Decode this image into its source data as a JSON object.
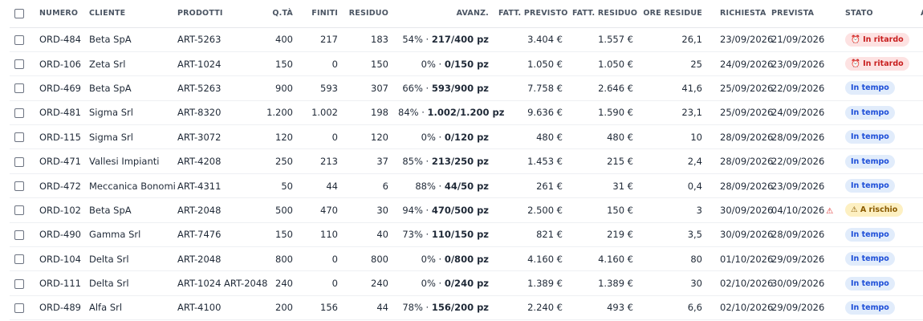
{
  "columns": {
    "numero": "NUMERO",
    "cliente": "CLIENTE",
    "prodotti": "PRODOTTI",
    "qta": "Q.TÀ",
    "finiti": "FINITI",
    "residuo": "RESIDUO",
    "avanz": "AVANZ.",
    "fatt_previsto": "FATT. PREVISTO",
    "fatt_residuo": "FATT. RESIDUO",
    "ore_residue": "ORE RESIDUE",
    "richiesta": "RICHIESTA",
    "prevista": "PREVISTA",
    "stato": "STATO",
    "azioni": "AZI"
  },
  "status_colors": {
    "in_ritardo": "#c81e1e",
    "in_tempo": "#1d4ed8",
    "a_rischio": "#8a5a00"
  },
  "rows": [
    {
      "numero": "ORD-484",
      "cliente": "Beta SpA",
      "prodotti": "ART-5263",
      "qta": "400",
      "finiti": "217",
      "residuo": "183",
      "avanz_pct": "54% · ",
      "avanz_pz": "217/400 pz",
      "fatt_previsto": "3.404 €",
      "fatt_residuo": "1.557 €",
      "ore_residue": "26,1",
      "richiesta": "23/09/2026",
      "prevista": "21/09/2026",
      "prevista_warn": "",
      "stato": "⏰ In ritardo",
      "stato_type": "late"
    },
    {
      "numero": "ORD-106",
      "cliente": "Zeta Srl",
      "prodotti": "ART-1024",
      "qta": "150",
      "finiti": "0",
      "residuo": "150",
      "avanz_pct": "0% · ",
      "avanz_pz": "0/150 pz",
      "fatt_previsto": "1.050 €",
      "fatt_residuo": "1.050 €",
      "ore_residue": "25",
      "richiesta": "24/09/2026",
      "prevista": "23/09/2026",
      "prevista_warn": "",
      "stato": "⏰ In ritardo",
      "stato_type": "late"
    },
    {
      "numero": "ORD-469",
      "cliente": "Beta SpA",
      "prodotti": "ART-5263",
      "qta": "900",
      "finiti": "593",
      "residuo": "307",
      "avanz_pct": "66% · ",
      "avanz_pz": "593/900 pz",
      "fatt_previsto": "7.758 €",
      "fatt_residuo": "2.646 €",
      "ore_residue": "41,6",
      "richiesta": "25/09/2026",
      "prevista": "22/09/2026",
      "prevista_warn": "",
      "stato": "In tempo",
      "stato_type": "ontime"
    },
    {
      "numero": "ORD-481",
      "cliente": "Sigma Srl",
      "prodotti": "ART-8320",
      "qta": "1.200",
      "finiti": "1.002",
      "residuo": "198",
      "avanz_pct": "84% · ",
      "avanz_pz": "1.002/1.200 pz",
      "fatt_previsto": "9.636 €",
      "fatt_residuo": "1.590 €",
      "ore_residue": "23,1",
      "richiesta": "25/09/2026",
      "prevista": "24/09/2026",
      "prevista_warn": "",
      "stato": "In tempo",
      "stato_type": "ontime"
    },
    {
      "numero": "ORD-115",
      "cliente": "Sigma Srl",
      "prodotti": "ART-3072",
      "qta": "120",
      "finiti": "0",
      "residuo": "120",
      "avanz_pct": "0% · ",
      "avanz_pz": "0/120 pz",
      "fatt_previsto": "480 €",
      "fatt_residuo": "480 €",
      "ore_residue": "10",
      "richiesta": "28/09/2026",
      "prevista": "28/09/2026",
      "prevista_warn": "",
      "stato": "In tempo",
      "stato_type": "ontime"
    },
    {
      "numero": "ORD-471",
      "cliente": "Vallesi Impianti",
      "prodotti": "ART-4208",
      "qta": "250",
      "finiti": "213",
      "residuo": "37",
      "avanz_pct": "85% · ",
      "avanz_pz": "213/250 pz",
      "fatt_previsto": "1.453 €",
      "fatt_residuo": "215 €",
      "ore_residue": "2,4",
      "richiesta": "28/09/2026",
      "prevista": "22/09/2026",
      "prevista_warn": "",
      "stato": "In tempo",
      "stato_type": "ontime"
    },
    {
      "numero": "ORD-472",
      "cliente": "Meccanica Bonomi",
      "prodotti": "ART-4311",
      "qta": "50",
      "finiti": "44",
      "residuo": "6",
      "avanz_pct": "88% · ",
      "avanz_pz": "44/50 pz",
      "fatt_previsto": "261 €",
      "fatt_residuo": "31 €",
      "ore_residue": "0,4",
      "richiesta": "28/09/2026",
      "prevista": "23/09/2026",
      "prevista_warn": "",
      "stato": "In tempo",
      "stato_type": "ontime"
    },
    {
      "numero": "ORD-102",
      "cliente": "Beta SpA",
      "prodotti": "ART-2048",
      "qta": "500",
      "finiti": "470",
      "residuo": "30",
      "avanz_pct": "94% · ",
      "avanz_pz": "470/500 pz",
      "fatt_previsto": "2.500 €",
      "fatt_residuo": "150 €",
      "ore_residue": "3",
      "richiesta": "30/09/2026",
      "prevista": "04/10/2026",
      "prevista_warn": "⚠",
      "stato": "⚠ A rischio",
      "stato_type": "risk"
    },
    {
      "numero": "ORD-490",
      "cliente": "Gamma Srl",
      "prodotti": "ART-7476",
      "qta": "150",
      "finiti": "110",
      "residuo": "40",
      "avanz_pct": "73% · ",
      "avanz_pz": "110/150 pz",
      "fatt_previsto": "821 €",
      "fatt_residuo": "219 €",
      "ore_residue": "3,5",
      "richiesta": "30/09/2026",
      "prevista": "28/09/2026",
      "prevista_warn": "",
      "stato": "In tempo",
      "stato_type": "ontime"
    },
    {
      "numero": "ORD-104",
      "cliente": "Delta Srl",
      "prodotti": "ART-2048",
      "qta": "800",
      "finiti": "0",
      "residuo": "800",
      "avanz_pct": "0% · ",
      "avanz_pz": "0/800 pz",
      "fatt_previsto": "4.160 €",
      "fatt_residuo": "4.160 €",
      "ore_residue": "80",
      "richiesta": "01/10/2026",
      "prevista": "29/09/2026",
      "prevista_warn": "",
      "stato": "In tempo",
      "stato_type": "ontime"
    },
    {
      "numero": "ORD-111",
      "cliente": "Delta Srl",
      "prodotti": "ART-1024 ART-2048",
      "qta": "240",
      "finiti": "0",
      "residuo": "240",
      "avanz_pct": "0% · ",
      "avanz_pz": "0/240 pz",
      "fatt_previsto": "1.389 €",
      "fatt_residuo": "1.389 €",
      "ore_residue": "30",
      "richiesta": "02/10/2026",
      "prevista": "30/09/2026",
      "prevista_warn": "",
      "stato": "In tempo",
      "stato_type": "ontime"
    },
    {
      "numero": "ORD-489",
      "cliente": "Alfa Srl",
      "prodotti": "ART-4100",
      "qta": "200",
      "finiti": "156",
      "residuo": "44",
      "avanz_pct": "78% · ",
      "avanz_pz": "156/200 pz",
      "fatt_previsto": "2.240 €",
      "fatt_residuo": "493 €",
      "ore_residue": "6,6",
      "richiesta": "02/10/2026",
      "prevista": "29/09/2026",
      "prevista_warn": "",
      "stato": "In tempo",
      "stato_type": "ontime"
    }
  ]
}
